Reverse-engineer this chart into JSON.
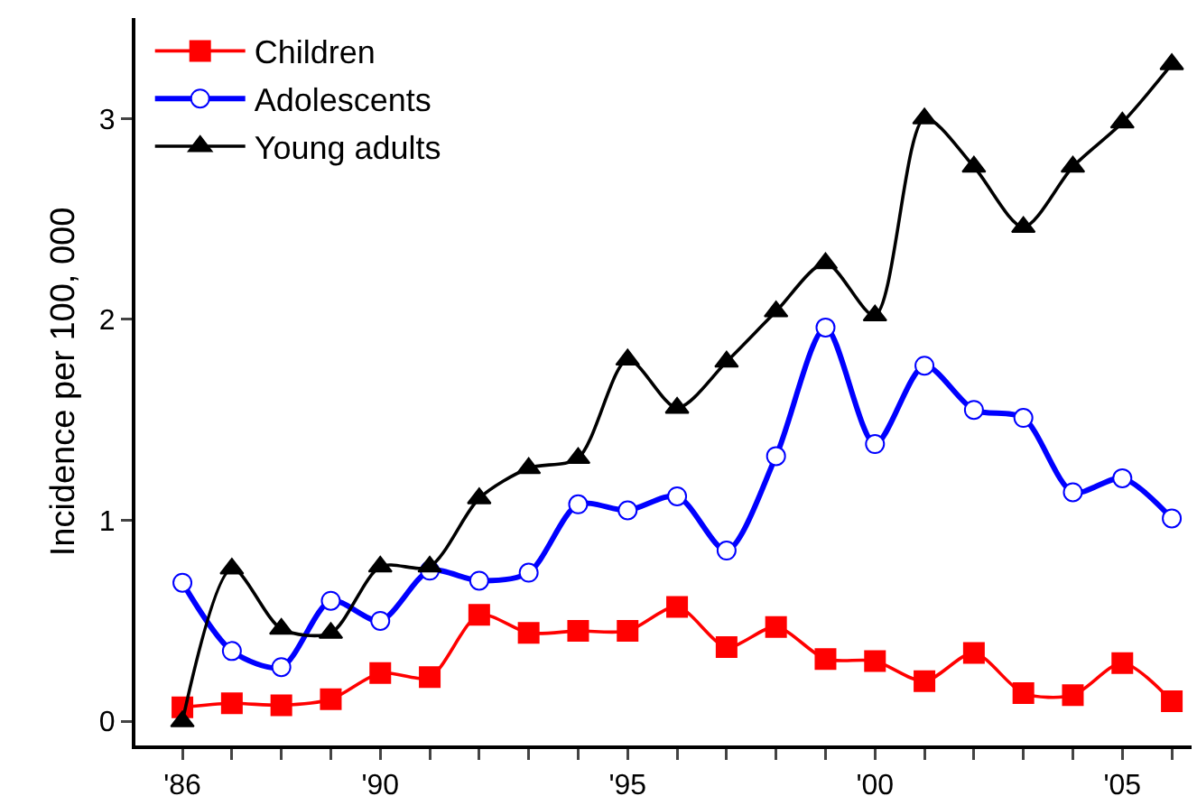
{
  "chart_data": {
    "type": "line",
    "ylabel": "Incidence per 100, 000",
    "x": [
      1986,
      1987,
      1988,
      1989,
      1990,
      1991,
      1992,
      1993,
      1994,
      1995,
      1996,
      1997,
      1998,
      1999,
      2000,
      2001,
      2002,
      2003,
      2004,
      2005,
      2006
    ],
    "series": [
      {
        "name": "Children",
        "color": "#ff0000",
        "marker": "square",
        "values": [
          0.07,
          0.09,
          0.08,
          0.11,
          0.24,
          0.22,
          0.53,
          0.44,
          0.45,
          0.45,
          0.57,
          0.37,
          0.47,
          0.31,
          0.3,
          0.2,
          0.34,
          0.14,
          0.13,
          0.29,
          0.1
        ]
      },
      {
        "name": "Adolescents",
        "color": "#0000ff",
        "marker": "circle",
        "values": [
          0.69,
          0.35,
          0.27,
          0.6,
          0.5,
          0.75,
          0.7,
          0.74,
          1.08,
          1.05,
          1.12,
          0.85,
          1.32,
          1.96,
          1.38,
          1.77,
          1.55,
          1.51,
          1.14,
          1.21,
          1.01
        ]
      },
      {
        "name": "Young adults",
        "color": "#000000",
        "marker": "triangle",
        "values": [
          0.0,
          0.76,
          0.46,
          0.44,
          0.77,
          0.77,
          1.11,
          1.26,
          1.31,
          1.8,
          1.56,
          1.79,
          2.04,
          2.28,
          2.02,
          3.0,
          2.76,
          2.46,
          2.76,
          2.98,
          3.27
        ]
      }
    ],
    "xlim": [
      1985.05,
      2006.4
    ],
    "xticks": [
      {
        "value": 1986,
        "label": "'86"
      },
      {
        "value": 1987,
        "label": null
      },
      {
        "value": 1988,
        "label": null
      },
      {
        "value": 1989,
        "label": null
      },
      {
        "value": 1990,
        "label": "'90"
      },
      {
        "value": 1991,
        "label": null
      },
      {
        "value": 1992,
        "label": null
      },
      {
        "value": 1993,
        "label": null
      },
      {
        "value": 1994,
        "label": null
      },
      {
        "value": 1995,
        "label": "'95"
      },
      {
        "value": 1996,
        "label": null
      },
      {
        "value": 1997,
        "label": null
      },
      {
        "value": 1998,
        "label": null
      },
      {
        "value": 1999,
        "label": null
      },
      {
        "value": 2000,
        "label": "'00"
      },
      {
        "value": 2001,
        "label": null
      },
      {
        "value": 2002,
        "label": null
      },
      {
        "value": 2003,
        "label": null
      },
      {
        "value": 2004,
        "label": null
      },
      {
        "value": 2005,
        "label": "'05"
      },
      {
        "value": 2006,
        "label": null
      }
    ],
    "ylim": [
      -0.12,
      3.5
    ],
    "yticks": [
      0,
      1,
      2,
      3
    ],
    "grid": false,
    "legend": "top left",
    "line_style": "solid"
  }
}
